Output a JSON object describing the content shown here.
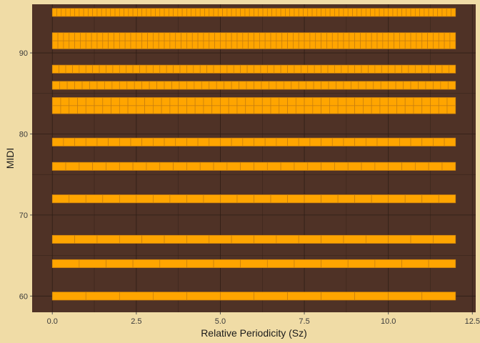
{
  "chart_data": {
    "type": "bar",
    "subtype": "stacked-tile-rows",
    "title": "",
    "xlabel": "Relative Periodicity (Sz)",
    "ylabel": "MIDI",
    "xlim": [
      -0.6,
      12.6
    ],
    "ylim": [
      58,
      96
    ],
    "x_ticks": [
      0,
      2.5,
      5,
      7.5,
      10,
      12.5
    ],
    "x_tick_labels": [
      "0.0",
      "2.5",
      "5.0",
      "7.5",
      "10.0",
      "12.5"
    ],
    "y_ticks": [
      60,
      70,
      80,
      90
    ],
    "y_tick_labels": [
      "60",
      "70",
      "80",
      "90"
    ],
    "grid": true,
    "x_range_of_rows": [
      0,
      12
    ],
    "series": [
      {
        "midi": 60,
        "height": 1,
        "tiles": 12
      },
      {
        "midi": 64,
        "height": 1,
        "tiles": 15
      },
      {
        "midi": 67,
        "height": 1,
        "tiles": 18
      },
      {
        "midi": 72,
        "height": 1,
        "tiles": 24
      },
      {
        "midi": 76,
        "height": 1,
        "tiles": 30
      },
      {
        "midi": 79,
        "height": 1,
        "tiles": 36
      },
      {
        "midi": 83,
        "height": 1,
        "tiles": 48
      },
      {
        "midi": 84,
        "height": 1,
        "tiles": 48
      },
      {
        "midi": 86,
        "height": 1,
        "tiles": 54
      },
      {
        "midi": 88,
        "height": 1,
        "tiles": 60
      },
      {
        "midi": 91,
        "height": 1,
        "tiles": 72
      },
      {
        "midi": 92,
        "height": 1,
        "tiles": 72
      },
      {
        "midi": 95,
        "height": 1,
        "tiles": 90
      }
    ]
  },
  "colors": {
    "page_background": "#F0DCA6",
    "panel_background": "#4F3226",
    "grid": "#2E1E16",
    "tile_fill": "#FFA500",
    "tile_edge": "#C47C10",
    "text": "#1a1a1a",
    "tick_text": "#3a3a3a"
  }
}
